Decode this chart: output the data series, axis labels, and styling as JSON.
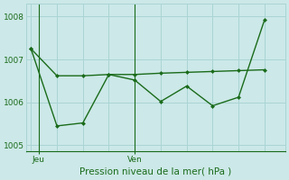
{
  "bg_color": "#cce8e8",
  "line1_x": [
    0,
    1,
    2,
    3,
    4,
    5,
    6,
    7,
    8,
    9
  ],
  "line1_y": [
    1007.25,
    1006.62,
    1006.62,
    1006.65,
    1006.65,
    1006.68,
    1006.7,
    1006.72,
    1006.74,
    1006.76
  ],
  "line2_x": [
    0,
    1,
    2,
    3,
    4,
    5,
    6,
    7,
    8,
    9
  ],
  "line2_y": [
    1007.25,
    1005.45,
    1005.52,
    1006.65,
    1006.52,
    1006.02,
    1006.38,
    1005.92,
    1006.12,
    1007.92
  ],
  "line_color": "#1a6b1a",
  "grid_color": "#aad4d4",
  "ylim": [
    1004.85,
    1008.3
  ],
  "yticks": [
    1005,
    1006,
    1007,
    1008
  ],
  "xlim": [
    -0.2,
    9.8
  ],
  "xtick_positions": [
    0.3,
    4.0
  ],
  "xtick_labels": [
    "Jeu",
    "Ven"
  ],
  "vline_x": [
    0.3,
    4.0
  ],
  "xlabel": "Pression niveau de la mer( hPa )"
}
